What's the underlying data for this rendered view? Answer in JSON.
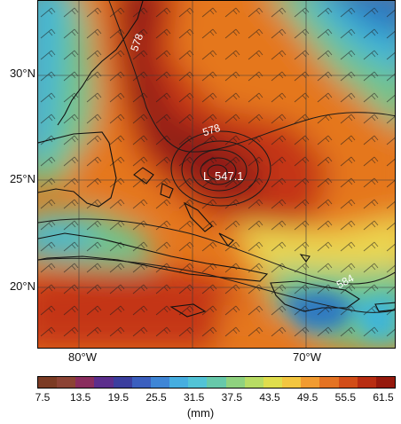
{
  "map": {
    "lat_labels": [
      "30°N",
      "25°N",
      "20°N"
    ],
    "lon_labels": [
      "80°W",
      "70°W"
    ],
    "contour_labels": {
      "north": "578",
      "center": "578",
      "southeast": "584"
    },
    "low_marker": "L",
    "low_value": "547.1",
    "field_colors": {
      "deep_red": "#8e1a12",
      "red": "#c43414",
      "orange": "#e5771d",
      "yellow": "#ecd64f",
      "green": "#6fc58d",
      "cyan": "#3fb5d7",
      "blue": "#2f79c1"
    }
  },
  "colorbar": {
    "ticks": [
      "7.5",
      "13.5",
      "19.5",
      "25.5",
      "31.5",
      "37.5",
      "43.5",
      "49.5",
      "55.5",
      "61.5"
    ],
    "units": "(mm)",
    "colors": [
      "#7b3b24",
      "#8c4335",
      "#8a2d5e",
      "#5c2e8c",
      "#3b3e9e",
      "#3b5fbe",
      "#3f86d6",
      "#46aee0",
      "#52c3d6",
      "#67c9aa",
      "#8fd27f",
      "#b8dc64",
      "#e0de4d",
      "#f3c640",
      "#f19b31",
      "#e47323",
      "#d24d18",
      "#b82d12",
      "#96190d"
    ]
  }
}
